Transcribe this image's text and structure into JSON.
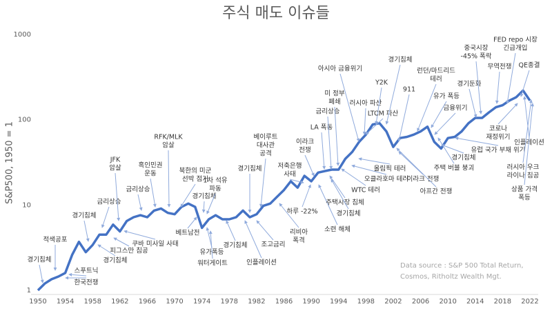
{
  "chart_data": {
    "type": "line",
    "title": "주식 매도 이슈들",
    "y_label": "S&P500, 1950 = 1",
    "log_scale": true,
    "color": "#4472c4",
    "x": [
      1950,
      1951,
      1952,
      1953,
      1954,
      1955,
      1956,
      1957,
      1958,
      1959,
      1960,
      1961,
      1962,
      1963,
      1964,
      1965,
      1966,
      1967,
      1968,
      1969,
      1970,
      1971,
      1972,
      1973,
      1974,
      1975,
      1976,
      1977,
      1978,
      1979,
      1980,
      1981,
      1982,
      1983,
      1984,
      1985,
      1986,
      1987,
      1988,
      1989,
      1990,
      1991,
      1992,
      1993,
      1994,
      1995,
      1996,
      1997,
      1998,
      1999,
      2000,
      2001,
      2002,
      2003,
      2004,
      2005,
      2006,
      2007,
      2008,
      2009,
      2010,
      2011,
      2012,
      2013,
      2014,
      2015,
      2016,
      2017,
      2018,
      2019,
      2020,
      2021,
      2022
    ],
    "values": [
      1,
      1.2,
      1.35,
      1.45,
      1.6,
      2.6,
      3.7,
      2.8,
      3.4,
      4.5,
      4.5,
      5.9,
      4.9,
      6.5,
      7.2,
      7.6,
      7.2,
      8.6,
      9.1,
      8.1,
      7.8,
      9.5,
      10.4,
      9.5,
      5.4,
      6.8,
      7.6,
      6.8,
      6.8,
      7.2,
      8.6,
      7.2,
      7.8,
      9.8,
      10.4,
      12.5,
      15,
      19,
      16,
      22,
      19,
      24,
      25,
      26,
      26,
      35,
      42,
      55,
      67,
      88,
      91,
      73,
      48,
      61,
      63,
      67,
      73,
      83,
      55,
      46,
      61,
      63,
      73,
      91,
      105,
      105,
      122,
      140,
      148,
      168,
      184,
      220,
      168
    ],
    "xlim": [
      1950,
      2022
    ],
    "xticks": [
      1950,
      1954,
      1958,
      1962,
      1966,
      1970,
      1974,
      1978,
      1982,
      1986,
      1990,
      1994,
      1998,
      2002,
      2006,
      2010,
      2014,
      2018,
      2022
    ],
    "ylim": [
      1,
      1000
    ],
    "yticks": [
      1,
      10,
      100,
      1000
    ],
    "annotations": [
      [
        "경기침체"
      ],
      [
        "적색공포"
      ],
      [
        "스푸트닉"
      ],
      [
        "한국전쟁"
      ],
      [
        "경기침체"
      ],
      [
        "금리상승"
      ],
      [
        "경기침체"
      ],
      [
        "피그스만 침공"
      ],
      [
        "JFK",
        "암살"
      ],
      [
        "쿠바 미사일 사태"
      ],
      [
        "금리상승"
      ],
      [
        "흑인민권",
        "운동"
      ],
      [
        "RFK/MLK",
        "암살"
      ],
      [
        "북한의 미군",
        "선박 점거"
      ],
      [
        "베트남전"
      ],
      [
        "경기침체"
      ],
      [
        "1차 석유",
        "파동"
      ],
      [
        "유가폭등"
      ],
      [
        "워터게이트"
      ],
      [
        "경기침체"
      ],
      [
        "인플레이션"
      ],
      [
        "경기침체"
      ],
      [
        "베이루트",
        "대사관",
        "공격"
      ],
      [
        "조고금리"
      ],
      [
        "리비아",
        "폭격"
      ],
      [
        "저축은행",
        "사태"
      ],
      [
        "하루 -22%"
      ],
      [
        "이라크",
        "전쟁"
      ],
      [
        "소련 해체"
      ],
      [
        "LA 폭동"
      ],
      [
        "금리상승"
      ],
      [
        "미 정부",
        "폐쇄"
      ],
      [
        "주택시장 침체"
      ],
      [
        "경기침체"
      ],
      [
        "WTC 테러"
      ],
      [
        "아시아 금융위기"
      ],
      [
        "러시아 파산"
      ],
      [
        "오클라호마 테러"
      ],
      [
        "올림픽 테러"
      ],
      [
        "Y2K"
      ],
      [
        "LTCM 파산"
      ],
      [
        "경기침체"
      ],
      [
        "911"
      ],
      [
        "런던/마드리드",
        "테러"
      ],
      [
        "이라크 전쟁"
      ],
      [
        "아프간 전쟁"
      ],
      [
        "유가 폭등"
      ],
      [
        "금융위기"
      ],
      [
        "주택 버블 붕괴"
      ],
      [
        "경기침체"
      ],
      [
        "경기둔화"
      ],
      [
        "유럽 국가 부채 위기"
      ],
      [
        "중국시장",
        "-45% 폭락"
      ],
      [
        "FED repo 시장",
        "긴급개입"
      ],
      [
        "무역전쟁"
      ],
      [
        "QE종결"
      ],
      [
        "코로나",
        "재정위기"
      ],
      [
        "인플레이션"
      ],
      [
        "러시아 우크",
        "라이나 침공"
      ],
      [
        "상품 가격",
        "폭등"
      ]
    ],
    "source": [
      "Data source : S&P 500 Total Return,",
      "Cosmos, Ritholtz Wealth Mgt."
    ]
  }
}
